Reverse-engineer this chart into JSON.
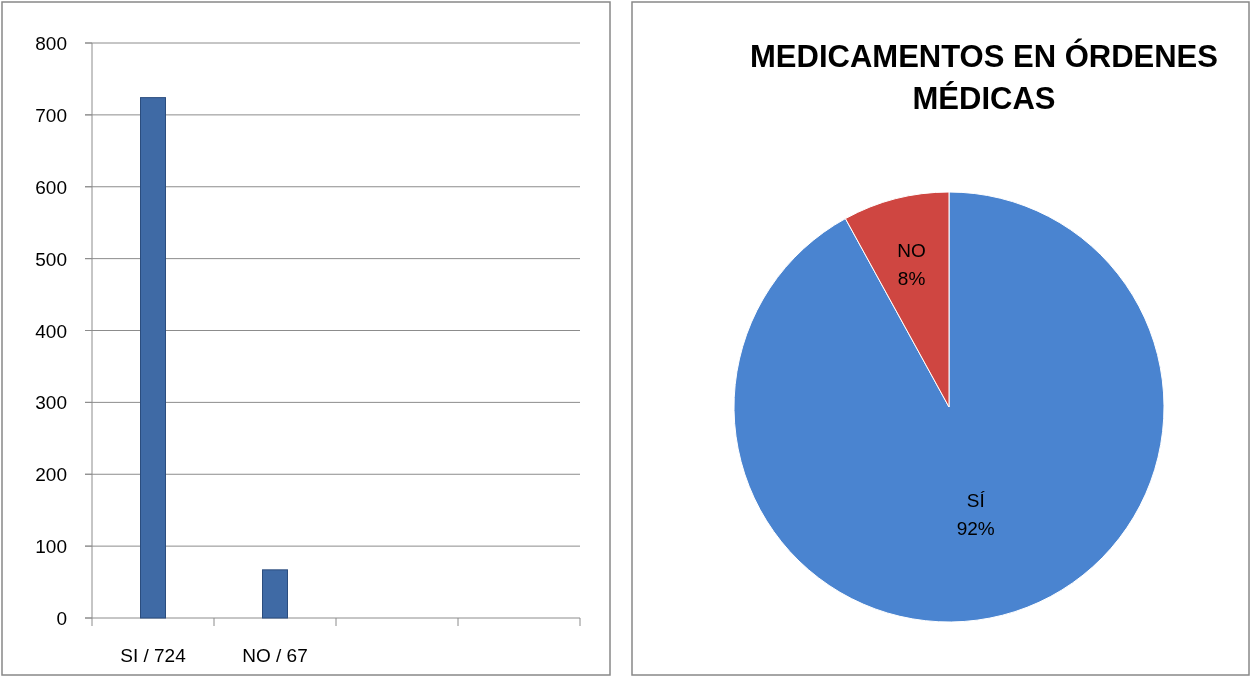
{
  "chart_data": [
    {
      "type": "bar",
      "categories": [
        "SI / 724",
        "NO / 67",
        null,
        null
      ],
      "values": [
        724,
        67,
        null,
        null
      ],
      "color": "#3f6aa5",
      "ylim": [
        0,
        800
      ],
      "yticks": [
        0,
        100,
        200,
        300,
        400,
        500,
        600,
        700,
        800
      ],
      "grid": "y"
    },
    {
      "type": "pie",
      "title": "MEDICAMENTOS EN ÓRDENES MÉDICAS",
      "categories": [
        "SÍ",
        "NO"
      ],
      "values": [
        92,
        8
      ],
      "value_labels": [
        "92%",
        "8%"
      ],
      "colors": [
        "#4a84d0",
        "#cf4641"
      ]
    }
  ]
}
